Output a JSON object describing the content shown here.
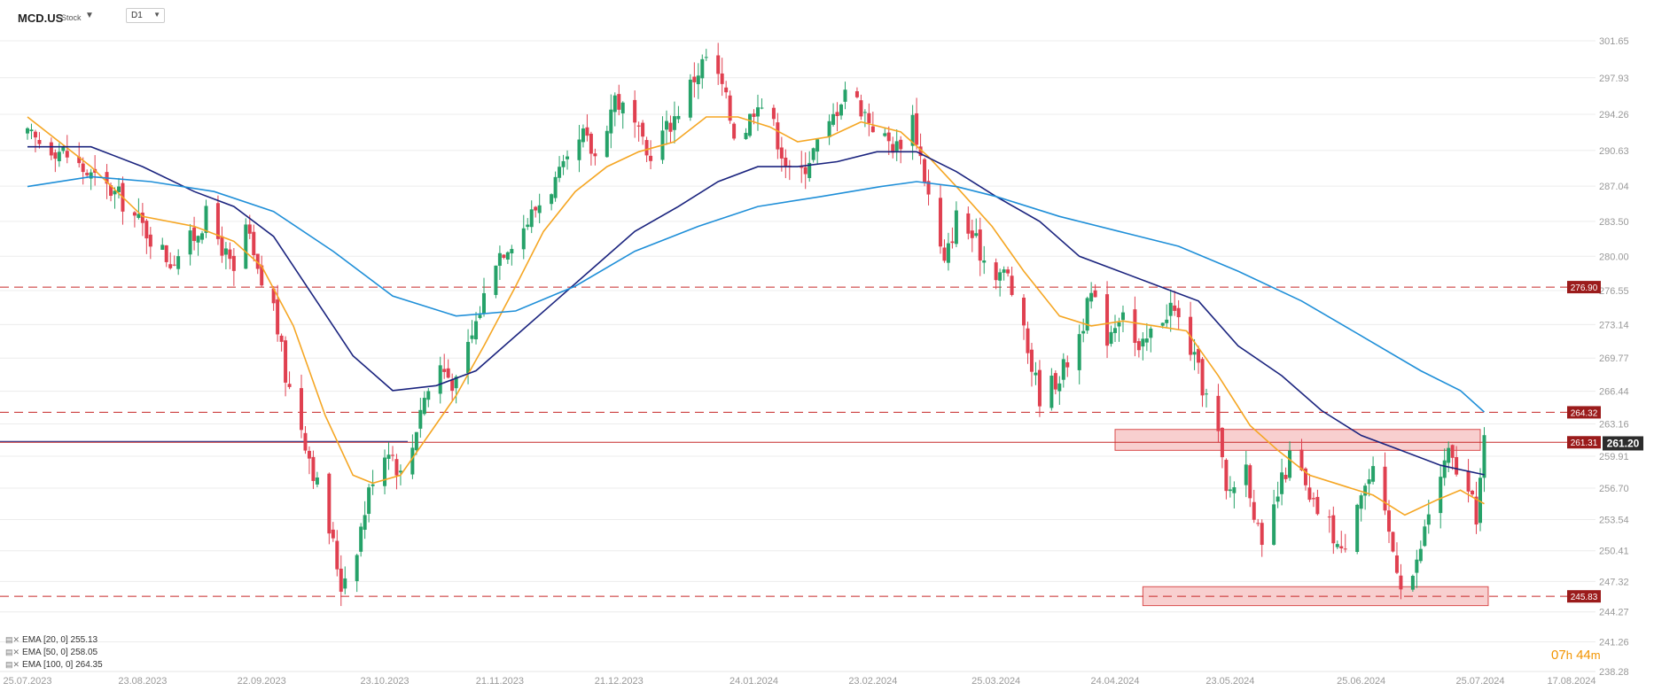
{
  "header": {
    "symbol": "MCD.US",
    "symbol_type": "Stock",
    "timeframe": "D1"
  },
  "legend": [
    {
      "label": "EMA [20, 0] 255.13",
      "color": "#f5a623"
    },
    {
      "label": "EMA [50, 0] 258.05",
      "color": "#1a237e"
    },
    {
      "label": "EMA [100, 0] 264.35",
      "color": "#1f8fd8"
    }
  ],
  "timer": {
    "hours": "07",
    "h": "h",
    "minutes": "44",
    "m": "m"
  },
  "colors": {
    "up": "#26a269",
    "down": "#e04050",
    "level": "#c62828",
    "grid": "#ececec"
  },
  "chart_data": {
    "type": "candlestick",
    "ylim": [
      238.28,
      301.65
    ],
    "y_ticks": [
      "301.65",
      "297.93",
      "294.26",
      "290.63",
      "287.04",
      "283.50",
      "280.00",
      "276.55",
      "273.14",
      "269.77",
      "266.44",
      "263.16",
      "259.91",
      "256.70",
      "253.54",
      "250.41",
      "247.32",
      "244.27",
      "241.26",
      "238.28"
    ],
    "x_ticks": [
      "25.07.2023",
      "23.08.2023",
      "22.09.2023",
      "23.10.2023",
      "21.11.2023",
      "21.12.2023",
      "24.01.2024",
      "23.02.2024",
      "25.03.2024",
      "24.04.2024",
      "23.05.2024",
      "25.06.2024",
      "25.07.2024",
      "17.08.2024"
    ],
    "last_price": "261.20",
    "levels": [
      {
        "value": 276.9,
        "label": "276.90"
      },
      {
        "value": 264.32,
        "label": "264.32"
      },
      {
        "value": 261.31,
        "label": "261.31"
      },
      {
        "value": 245.83,
        "label": "245.83"
      }
    ],
    "zones": [
      {
        "from_date": "2024-04-24",
        "to_date": "2024-07-25",
        "low": 260.5,
        "high": 262.6
      },
      {
        "from_date": "2024-05-01",
        "to_date": "2024-07-27",
        "low": 244.9,
        "high": 246.8
      }
    ],
    "close_path": [
      [
        "2023-07-25",
        292.0
      ],
      [
        "2023-08-03",
        290.5
      ],
      [
        "2023-08-10",
        288.0
      ],
      [
        "2023-08-17",
        286.0
      ],
      [
        "2023-08-23",
        283.0
      ],
      [
        "2023-08-30",
        279.5
      ],
      [
        "2023-09-05",
        282.0
      ],
      [
        "2023-09-08",
        284.0
      ],
      [
        "2023-09-12",
        281.0
      ],
      [
        "2023-09-15",
        278.0
      ],
      [
        "2023-09-18",
        283.0
      ],
      [
        "2023-09-21",
        278.0
      ],
      [
        "2023-09-25",
        275.0
      ],
      [
        "2023-09-28",
        268.0
      ],
      [
        "2023-10-02",
        263.0
      ],
      [
        "2023-10-06",
        257.0
      ],
      [
        "2023-10-10",
        251.0
      ],
      [
        "2023-10-12",
        247.0
      ],
      [
        "2023-10-16",
        251.0
      ],
      [
        "2023-10-20",
        258.0
      ],
      [
        "2023-10-24",
        261.0
      ],
      [
        "2023-10-28",
        257.0
      ],
      [
        "2023-11-01",
        265.0
      ],
      [
        "2023-11-06",
        269.0
      ],
      [
        "2023-11-10",
        267.0
      ],
      [
        "2023-11-14",
        272.0
      ],
      [
        "2023-11-20",
        280.0
      ],
      [
        "2023-11-27",
        283.0
      ],
      [
        "2023-12-02",
        286.0
      ],
      [
        "2023-12-08",
        289.0
      ],
      [
        "2023-12-12",
        292.0
      ],
      [
        "2023-12-15",
        290.0
      ],
      [
        "2023-12-20",
        296.0
      ],
      [
        "2023-12-25",
        293.0
      ],
      [
        "2023-12-28",
        290.0
      ],
      [
        "2024-01-04",
        294.0
      ],
      [
        "2024-01-09",
        298.0
      ],
      [
        "2024-01-12",
        300.0
      ],
      [
        "2024-01-16",
        297.0
      ],
      [
        "2024-01-20",
        291.0
      ],
      [
        "2024-01-25",
        296.0
      ],
      [
        "2024-01-29",
        293.0
      ],
      [
        "2024-02-03",
        287.0
      ],
      [
        "2024-02-07",
        290.0
      ],
      [
        "2024-02-12",
        293.0
      ],
      [
        "2024-02-16",
        297.0
      ],
      [
        "2024-02-20",
        295.0
      ],
      [
        "2024-02-25",
        292.0
      ],
      [
        "2024-02-29",
        291.0
      ],
      [
        "2024-03-04",
        294.0
      ],
      [
        "2024-03-06",
        290.0
      ],
      [
        "2024-03-09",
        284.0
      ],
      [
        "2024-03-12",
        279.0
      ],
      [
        "2024-03-15",
        284.0
      ],
      [
        "2024-03-19",
        282.0
      ],
      [
        "2024-03-23",
        279.0
      ],
      [
        "2024-03-28",
        278.0
      ],
      [
        "2024-04-01",
        272.0
      ],
      [
        "2024-04-05",
        266.0
      ],
      [
        "2024-04-10",
        268.0
      ],
      [
        "2024-04-14",
        271.0
      ],
      [
        "2024-04-18",
        276.0
      ],
      [
        "2024-04-22",
        272.0
      ],
      [
        "2024-04-26",
        275.0
      ],
      [
        "2024-04-30",
        270.0
      ],
      [
        "2024-05-04",
        273.0
      ],
      [
        "2024-05-08",
        275.0
      ],
      [
        "2024-05-12",
        272.0
      ],
      [
        "2024-05-16",
        267.0
      ],
      [
        "2024-05-20",
        262.0
      ],
      [
        "2024-05-22",
        256.0
      ],
      [
        "2024-05-27",
        259.0
      ],
      [
        "2024-05-31",
        250.0
      ],
      [
        "2024-06-04",
        256.0
      ],
      [
        "2024-06-08",
        261.0
      ],
      [
        "2024-06-12",
        255.0
      ],
      [
        "2024-06-16",
        254.0
      ],
      [
        "2024-06-20",
        250.0
      ],
      [
        "2024-06-24",
        256.0
      ],
      [
        "2024-06-28",
        258.0
      ],
      [
        "2024-07-02",
        252.0
      ],
      [
        "2024-07-06",
        246.0
      ],
      [
        "2024-07-09",
        249.0
      ],
      [
        "2024-07-13",
        256.0
      ],
      [
        "2024-07-17",
        260.0
      ],
      [
        "2024-07-21",
        257.0
      ],
      [
        "2024-07-24",
        254.0
      ],
      [
        "2024-07-26",
        261.2
      ]
    ],
    "series": [
      {
        "name": "EMA [20, 0] 255.13",
        "color": "#f5a623",
        "points": [
          [
            "2023-07-25",
            294.0
          ],
          [
            "2023-08-10",
            289.0
          ],
          [
            "2023-08-23",
            284.0
          ],
          [
            "2023-09-05",
            283.0
          ],
          [
            "2023-09-15",
            281.5
          ],
          [
            "2023-09-22",
            279.0
          ],
          [
            "2023-09-30",
            273.0
          ],
          [
            "2023-10-08",
            264.0
          ],
          [
            "2023-10-15",
            258.0
          ],
          [
            "2023-10-20",
            257.2
          ],
          [
            "2023-10-27",
            258.0
          ],
          [
            "2023-11-03",
            262.0
          ],
          [
            "2023-11-10",
            266.0
          ],
          [
            "2023-11-17",
            271.0
          ],
          [
            "2023-11-25",
            277.0
          ],
          [
            "2023-12-02",
            282.5
          ],
          [
            "2023-12-10",
            286.5
          ],
          [
            "2023-12-18",
            289.0
          ],
          [
            "2023-12-26",
            290.5
          ],
          [
            "2024-01-04",
            291.5
          ],
          [
            "2024-01-12",
            294.0
          ],
          [
            "2024-01-20",
            294.0
          ],
          [
            "2024-01-28",
            293.0
          ],
          [
            "2024-02-04",
            291.5
          ],
          [
            "2024-02-12",
            292.0
          ],
          [
            "2024-02-20",
            293.5
          ],
          [
            "2024-03-01",
            292.5
          ],
          [
            "2024-03-08",
            290.0
          ],
          [
            "2024-03-15",
            287.0
          ],
          [
            "2024-03-24",
            283.0
          ],
          [
            "2024-04-01",
            278.5
          ],
          [
            "2024-04-10",
            274.0
          ],
          [
            "2024-04-18",
            273.0
          ],
          [
            "2024-04-26",
            273.5
          ],
          [
            "2024-05-04",
            273.0
          ],
          [
            "2024-05-12",
            272.5
          ],
          [
            "2024-05-20",
            268.0
          ],
          [
            "2024-05-28",
            263.0
          ],
          [
            "2024-06-04",
            260.5
          ],
          [
            "2024-06-12",
            258.0
          ],
          [
            "2024-06-20",
            257.0
          ],
          [
            "2024-06-28",
            256.0
          ],
          [
            "2024-07-06",
            254.0
          ],
          [
            "2024-07-14",
            255.5
          ],
          [
            "2024-07-20",
            256.5
          ],
          [
            "2024-07-26",
            255.13
          ]
        ]
      },
      {
        "name": "EMA [50, 0] 258.05",
        "color": "#1a237e",
        "points": [
          [
            "2023-07-25",
            291.0
          ],
          [
            "2023-08-10",
            291.0
          ],
          [
            "2023-08-23",
            289.0
          ],
          [
            "2023-09-05",
            286.5
          ],
          [
            "2023-09-15",
            285.0
          ],
          [
            "2023-09-25",
            282.0
          ],
          [
            "2023-10-05",
            276.0
          ],
          [
            "2023-10-15",
            270.0
          ],
          [
            "2023-10-25",
            266.5
          ],
          [
            "2023-11-05",
            267.0
          ],
          [
            "2023-11-15",
            268.5
          ],
          [
            "2023-11-25",
            272.0
          ],
          [
            "2023-12-05",
            275.5
          ],
          [
            "2023-12-15",
            279.0
          ],
          [
            "2023-12-25",
            282.5
          ],
          [
            "2024-01-05",
            285.0
          ],
          [
            "2024-01-15",
            287.5
          ],
          [
            "2024-01-25",
            289.0
          ],
          [
            "2024-02-04",
            289.0
          ],
          [
            "2024-02-14",
            289.5
          ],
          [
            "2024-02-24",
            290.5
          ],
          [
            "2024-03-05",
            290.5
          ],
          [
            "2024-03-15",
            288.5
          ],
          [
            "2024-03-25",
            286.0
          ],
          [
            "2024-04-05",
            283.5
          ],
          [
            "2024-04-15",
            280.0
          ],
          [
            "2024-04-25",
            278.5
          ],
          [
            "2024-05-05",
            277.0
          ],
          [
            "2024-05-15",
            275.5
          ],
          [
            "2024-05-25",
            271.0
          ],
          [
            "2024-06-05",
            268.0
          ],
          [
            "2024-06-15",
            264.5
          ],
          [
            "2024-06-25",
            262.0
          ],
          [
            "2024-07-05",
            260.5
          ],
          [
            "2024-07-15",
            259.0
          ],
          [
            "2024-07-26",
            258.05
          ]
        ]
      },
      {
        "name": "EMA [100, 0] 264.35",
        "color": "#1f8fd8",
        "points": [
          [
            "2023-07-25",
            287.0
          ],
          [
            "2023-08-10",
            288.0
          ],
          [
            "2023-08-25",
            287.5
          ],
          [
            "2023-09-10",
            286.5
          ],
          [
            "2023-09-25",
            284.5
          ],
          [
            "2023-10-10",
            280.5
          ],
          [
            "2023-10-25",
            276.0
          ],
          [
            "2023-11-10",
            274.0
          ],
          [
            "2023-11-25",
            274.5
          ],
          [
            "2023-12-10",
            277.0
          ],
          [
            "2023-12-25",
            280.5
          ],
          [
            "2024-01-10",
            283.0
          ],
          [
            "2024-01-25",
            285.0
          ],
          [
            "2024-02-10",
            286.0
          ],
          [
            "2024-02-25",
            287.0
          ],
          [
            "2024-03-05",
            287.5
          ],
          [
            "2024-03-15",
            287.0
          ],
          [
            "2024-03-25",
            286.0
          ],
          [
            "2024-04-10",
            284.0
          ],
          [
            "2024-04-25",
            282.5
          ],
          [
            "2024-05-10",
            281.0
          ],
          [
            "2024-05-25",
            278.5
          ],
          [
            "2024-06-10",
            275.5
          ],
          [
            "2024-06-25",
            272.0
          ],
          [
            "2024-07-10",
            268.5
          ],
          [
            "2024-07-20",
            266.5
          ],
          [
            "2024-07-26",
            264.35
          ]
        ]
      }
    ]
  }
}
